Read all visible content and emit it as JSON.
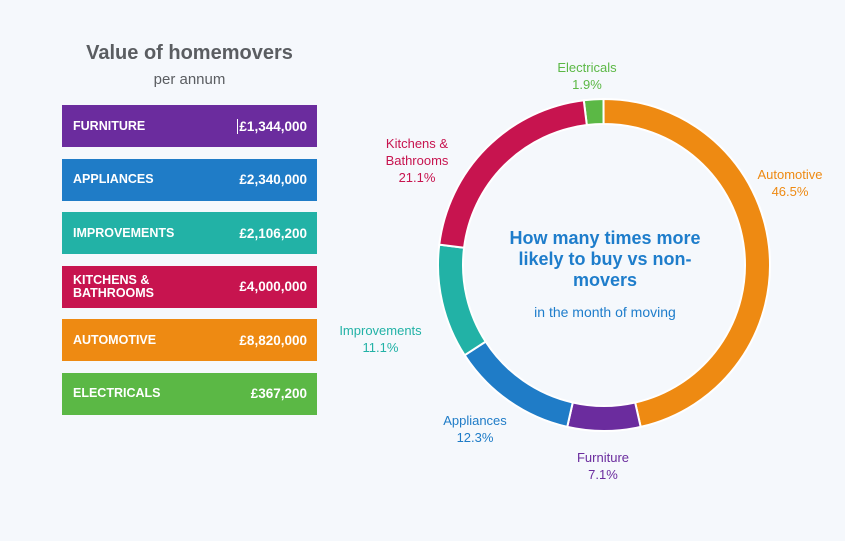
{
  "left_panel": {
    "title": "Value of homemovers",
    "subtitle": "per annum",
    "rows": [
      {
        "label": "FURNITURE",
        "value": "£1,344,000",
        "color": "#6b2c9e"
      },
      {
        "label": "APPLIANCES",
        "value": "£2,340,000",
        "color": "#1f7cc7"
      },
      {
        "label": "IMPROVEMENTS",
        "value": "£2,106,200",
        "color": "#22b2a6"
      },
      {
        "label": "KITCHENS & BATHROOMS",
        "value": "£4,000,000",
        "color": "#c7144f"
      },
      {
        "label": "AUTOMOTIVE",
        "value": "£8,820,000",
        "color": "#ee8a12"
      },
      {
        "label": "ELECTRICALS",
        "value": "£367,200",
        "color": "#5bb845"
      }
    ]
  },
  "chart_data": {
    "type": "pie",
    "title": "How many times more likely to buy vs non-movers",
    "subtitle": "in the month of moving",
    "slices": [
      {
        "name": "Electricals",
        "value": 1.9,
        "display": "1.9%",
        "color": "#5bb845"
      },
      {
        "name": "Automotive",
        "value": 46.5,
        "display": "46.5%",
        "color": "#ee8a12"
      },
      {
        "name": "Furniture",
        "value": 7.1,
        "display": "7.1%",
        "color": "#6b2c9e"
      },
      {
        "name": "Appliances",
        "value": 12.3,
        "display": "12.3%",
        "color": "#1f7cc7"
      },
      {
        "name": "Improvements",
        "value": 11.1,
        "display": "11.1%",
        "color": "#22b2a6"
      },
      {
        "name": "Kitchens & Bathrooms",
        "value": 21.1,
        "display": "21.1%",
        "color": "#c7144f"
      }
    ]
  }
}
